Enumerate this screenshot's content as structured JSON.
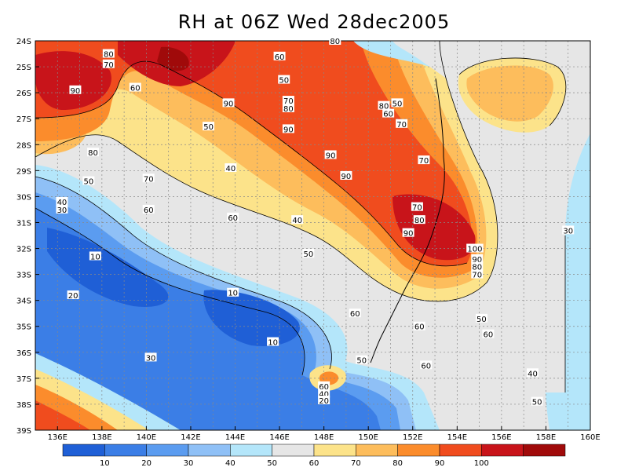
{
  "title": "RH at 06Z Wed 28dec2005",
  "x_axis_labels": [
    "136E",
    "138E",
    "140E",
    "142E",
    "144E",
    "146E",
    "148E",
    "150E",
    "152E",
    "154E",
    "156E",
    "158E",
    "160E"
  ],
  "y_axis_labels": [
    "24S",
    "25S",
    "26S",
    "27S",
    "28S",
    "29S",
    "30S",
    "31S",
    "32S",
    "33S",
    "34S",
    "35S",
    "36S",
    "37S",
    "38S",
    "39S"
  ],
  "colorbar": {
    "tick_labels": [
      "10",
      "20",
      "30",
      "40",
      "50",
      "60",
      "70",
      "80",
      "90",
      "100"
    ],
    "colors": [
      "#1f5fd6",
      "#3b7ee6",
      "#5b9cf0",
      "#8fc0f6",
      "#b4e6fa",
      "#e6e6e6",
      "#fce38a",
      "#fdbd5c",
      "#fb8c2c",
      "#f04c1e",
      "#c8141a",
      "#a00a0a"
    ]
  },
  "contour_labels": [
    {
      "text": "80",
      "lon": 148.5,
      "lat": -24.0
    },
    {
      "text": "80",
      "lon": 138.3,
      "lat": -24.5
    },
    {
      "text": "70",
      "lon": 138.3,
      "lat": -24.9
    },
    {
      "text": "60",
      "lon": 146.0,
      "lat": -24.6
    },
    {
      "text": "90",
      "lon": 136.8,
      "lat": -25.9
    },
    {
      "text": "60",
      "lon": 139.5,
      "lat": -25.8
    },
    {
      "text": "50",
      "lon": 146.2,
      "lat": -25.5
    },
    {
      "text": "90",
      "lon": 143.7,
      "lat": -26.4
    },
    {
      "text": "70",
      "lon": 146.4,
      "lat": -26.3
    },
    {
      "text": "80",
      "lon": 146.4,
      "lat": -26.6
    },
    {
      "text": "80",
      "lon": 150.7,
      "lat": -26.5
    },
    {
      "text": "50",
      "lon": 151.3,
      "lat": -26.4
    },
    {
      "text": "60",
      "lon": 150.9,
      "lat": -26.8
    },
    {
      "text": "70",
      "lon": 151.5,
      "lat": -27.2
    },
    {
      "text": "90",
      "lon": 146.4,
      "lat": -27.4
    },
    {
      "text": "50",
      "lon": 142.8,
      "lat": -27.3
    },
    {
      "text": "80",
      "lon": 137.6,
      "lat": -28.3
    },
    {
      "text": "90",
      "lon": 148.3,
      "lat": -28.4
    },
    {
      "text": "70",
      "lon": 152.5,
      "lat": -28.6
    },
    {
      "text": "40",
      "lon": 143.8,
      "lat": -28.9
    },
    {
      "text": "90",
      "lon": 149.0,
      "lat": -29.2
    },
    {
      "text": "50",
      "lon": 137.4,
      "lat": -29.4
    },
    {
      "text": "70",
      "lon": 140.1,
      "lat": -29.3
    },
    {
      "text": "40",
      "lon": 136.2,
      "lat": -30.2
    },
    {
      "text": "30",
      "lon": 136.2,
      "lat": -30.5
    },
    {
      "text": "60",
      "lon": 140.1,
      "lat": -30.5
    },
    {
      "text": "70",
      "lon": 152.2,
      "lat": -30.4
    },
    {
      "text": "80",
      "lon": 152.3,
      "lat": -30.9
    },
    {
      "text": "60",
      "lon": 143.9,
      "lat": -30.8
    },
    {
      "text": "40",
      "lon": 146.8,
      "lat": -30.9
    },
    {
      "text": "90",
      "lon": 151.8,
      "lat": -31.4
    },
    {
      "text": "30",
      "lon": 159.0,
      "lat": -31.3
    },
    {
      "text": "10",
      "lon": 137.7,
      "lat": -32.3
    },
    {
      "text": "50",
      "lon": 147.3,
      "lat": -32.2
    },
    {
      "text": "100",
      "lon": 154.8,
      "lat": -32.0
    },
    {
      "text": "90",
      "lon": 154.9,
      "lat": -32.4
    },
    {
      "text": "80",
      "lon": 154.9,
      "lat": -32.7
    },
    {
      "text": "70",
      "lon": 154.9,
      "lat": -33.0
    },
    {
      "text": "10",
      "lon": 143.9,
      "lat": -33.7
    },
    {
      "text": "20",
      "lon": 136.7,
      "lat": -33.8
    },
    {
      "text": "60",
      "lon": 149.4,
      "lat": -34.5
    },
    {
      "text": "50",
      "lon": 155.1,
      "lat": -34.7
    },
    {
      "text": "60",
      "lon": 152.3,
      "lat": -35.0
    },
    {
      "text": "10",
      "lon": 145.7,
      "lat": -35.6
    },
    {
      "text": "60",
      "lon": 155.4,
      "lat": -35.3
    },
    {
      "text": "30",
      "lon": 140.2,
      "lat": -36.2
    },
    {
      "text": "50",
      "lon": 149.7,
      "lat": -36.3
    },
    {
      "text": "60",
      "lon": 152.6,
      "lat": -36.5
    },
    {
      "text": "40",
      "lon": 157.4,
      "lat": -36.8
    },
    {
      "text": "60",
      "lon": 148.0,
      "lat": -37.3
    },
    {
      "text": "40",
      "lon": 148.0,
      "lat": -37.6
    },
    {
      "text": "20",
      "lon": 148.0,
      "lat": -37.85
    },
    {
      "text": "50",
      "lon": 157.6,
      "lat": -37.9
    }
  ]
}
